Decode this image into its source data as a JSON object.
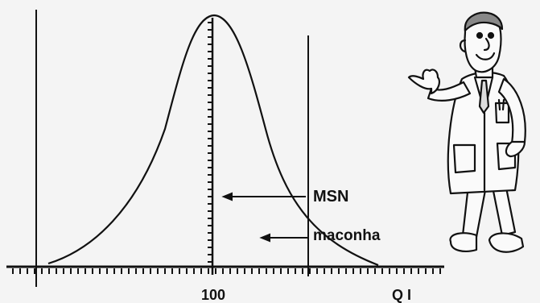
{
  "diagram": {
    "x_tick_label": "100",
    "x_axis_label": "Q I",
    "annotations": [
      {
        "id": "msn",
        "text": "MSN"
      },
      {
        "id": "maconha",
        "text": "maconha"
      }
    ]
  },
  "illustration": {
    "subject": "doctor-cartoon"
  },
  "colors": {
    "ink": "#111111",
    "background": "#f4f4f4",
    "coat": "#fafafa"
  }
}
